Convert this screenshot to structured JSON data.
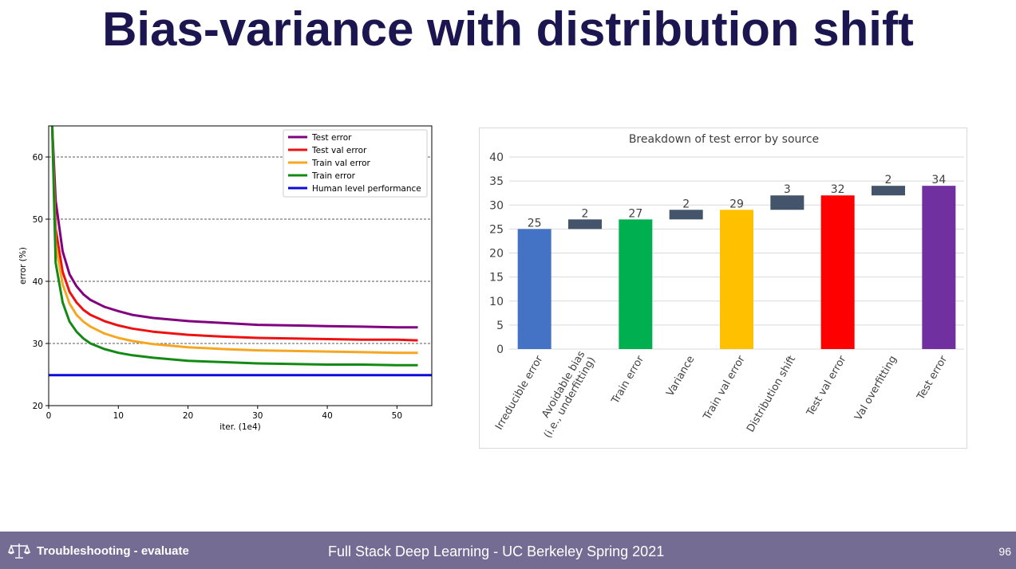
{
  "slide": {
    "title": "Bias-variance with distribution shift"
  },
  "footer": {
    "section": "Troubleshooting - evaluate",
    "course": "Full Stack Deep Learning - UC Berkeley Spring 2021",
    "page_number": "96",
    "logo_icon": "scales-icon"
  },
  "chart_data": [
    {
      "type": "line",
      "title": "",
      "xlabel": "iter. (1e4)",
      "ylabel": "error (%)",
      "xlim": [
        0,
        55
      ],
      "ylim": [
        20,
        65
      ],
      "xticks": [
        0,
        10,
        20,
        30,
        40,
        50
      ],
      "yticks": [
        20,
        30,
        40,
        50,
        60
      ],
      "grid": "horizontal-dashed",
      "legend_position": "top-right",
      "series": [
        {
          "name": "Test error",
          "color": "#800080",
          "x": [
            0.5,
            1,
            2,
            3,
            4,
            5,
            6,
            8,
            10,
            12,
            15,
            20,
            25,
            30,
            35,
            40,
            45,
            50,
            53
          ],
          "y": [
            65,
            53,
            44.8,
            41.1,
            39.2,
            37.9,
            37.0,
            35.9,
            35.2,
            34.6,
            34.1,
            33.6,
            33.3,
            33.0,
            32.9,
            32.8,
            32.7,
            32.6,
            32.6
          ]
        },
        {
          "name": "Test val error",
          "color": "#ee1111",
          "x": [
            0.5,
            1,
            2,
            3,
            4,
            5,
            6,
            8,
            10,
            12,
            15,
            20,
            25,
            30,
            35,
            40,
            45,
            50,
            53
          ],
          "y": [
            65,
            48.5,
            41.5,
            38.3,
            36.6,
            35.4,
            34.6,
            33.6,
            32.9,
            32.4,
            31.9,
            31.4,
            31.1,
            30.9,
            30.8,
            30.7,
            30.6,
            30.6,
            30.5
          ]
        },
        {
          "name": "Train val error",
          "color": "#f5a623",
          "x": [
            0.5,
            1,
            2,
            3,
            4,
            5,
            6,
            8,
            10,
            12,
            15,
            20,
            25,
            30,
            35,
            40,
            45,
            50,
            53
          ],
          "y": [
            65,
            46,
            39.5,
            36.4,
            34.6,
            33.5,
            32.7,
            31.6,
            30.9,
            30.4,
            29.9,
            29.4,
            29.1,
            28.9,
            28.8,
            28.7,
            28.6,
            28.5,
            28.5
          ]
        },
        {
          "name": "Train error",
          "color": "#138a13",
          "x": [
            0.5,
            1,
            2,
            3,
            4,
            5,
            6,
            8,
            10,
            12,
            15,
            20,
            25,
            30,
            35,
            40,
            45,
            50,
            53
          ],
          "y": [
            65,
            43,
            36.6,
            33.5,
            31.9,
            30.8,
            30.0,
            29.1,
            28.5,
            28.1,
            27.7,
            27.2,
            27.0,
            26.8,
            26.7,
            26.6,
            26.6,
            26.5,
            26.5
          ]
        },
        {
          "name": "Human level performance",
          "color": "#0b0bdc",
          "x": [
            0,
            55
          ],
          "y": [
            24.9,
            24.9
          ]
        }
      ]
    },
    {
      "type": "bar",
      "subtype": "waterfall",
      "title": "Breakdown of test error by source",
      "xlabel": "",
      "ylabel": "",
      "ylim": [
        0,
        40
      ],
      "yticks": [
        0,
        5,
        10,
        15,
        20,
        25,
        30,
        35,
        40
      ],
      "grid": "horizontal",
      "categories": [
        "Irreducible error",
        "Avoidable bias\n(i.e., underfitting)",
        "Train error",
        "Variance",
        "Train val error",
        "Distribution shift",
        "Test val error",
        "Val overfitting",
        "Test error"
      ],
      "bars": [
        {
          "label": "25",
          "base": 0,
          "value": 25,
          "kind": "total",
          "color": "#4472c4"
        },
        {
          "label": "2",
          "base": 25,
          "value": 2,
          "kind": "delta",
          "color": "#44546a"
        },
        {
          "label": "27",
          "base": 0,
          "value": 27,
          "kind": "total",
          "color": "#00b050"
        },
        {
          "label": "2",
          "base": 27,
          "value": 2,
          "kind": "delta",
          "color": "#44546a"
        },
        {
          "label": "29",
          "base": 0,
          "value": 29,
          "kind": "total",
          "color": "#ffc000"
        },
        {
          "label": "3",
          "base": 29,
          "value": 3,
          "kind": "delta",
          "color": "#44546a"
        },
        {
          "label": "32",
          "base": 0,
          "value": 32,
          "kind": "total",
          "color": "#ff0000"
        },
        {
          "label": "2",
          "base": 32,
          "value": 2,
          "kind": "delta",
          "color": "#44546a"
        },
        {
          "label": "34",
          "base": 0,
          "value": 34,
          "kind": "total",
          "color": "#7030a0"
        }
      ]
    }
  ]
}
